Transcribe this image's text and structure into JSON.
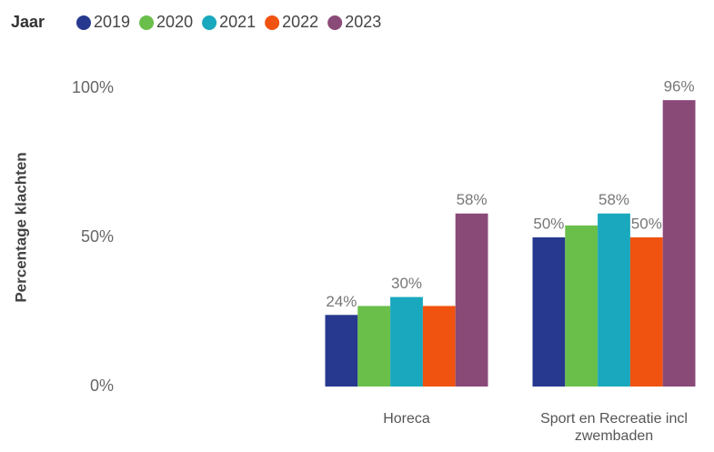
{
  "chart_data": {
    "type": "bar",
    "legend_title": "Jaar",
    "y_label": "Percentage klachten",
    "categories": [
      null,
      "Horeca",
      "Sport en Recreatie incl zwembaden"
    ],
    "series": [
      {
        "name": "2019",
        "color": "#27398f",
        "values": [
          null,
          24,
          50
        ],
        "value_labels": [
          null,
          "24%",
          "50%"
        ]
      },
      {
        "name": "2020",
        "color": "#6abf4b",
        "values": [
          null,
          27,
          54
        ],
        "value_labels": [
          null,
          null,
          null
        ]
      },
      {
        "name": "2021",
        "color": "#19a8bd",
        "values": [
          null,
          30,
          58
        ],
        "value_labels": [
          null,
          "30%",
          "58%"
        ]
      },
      {
        "name": "2022",
        "color": "#f0520f",
        "values": [
          null,
          27,
          50
        ],
        "value_labels": [
          null,
          null,
          "50%"
        ]
      },
      {
        "name": "2023",
        "color": "#8a4a78",
        "values": [
          null,
          58,
          96
        ],
        "value_labels": [
          null,
          "58%",
          "96%"
        ]
      }
    ],
    "ylim": [
      0,
      100
    ],
    "yticks": [
      {
        "value": 0,
        "label": "0%"
      },
      {
        "value": 50,
        "label": "50%"
      },
      {
        "value": 100,
        "label": "100%"
      }
    ],
    "grid": false,
    "legend": "top-left"
  }
}
